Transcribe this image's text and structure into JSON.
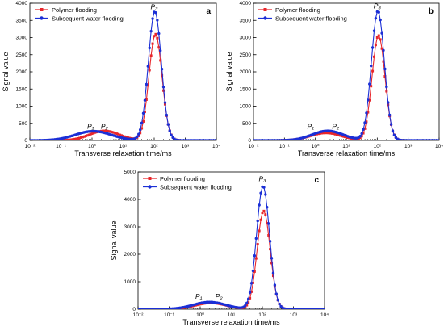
{
  "chart_data": [
    {
      "type": "line",
      "panel_label": "a",
      "xlabel": "Transverse relaxation time/ms",
      "ylabel": "Signal value",
      "xscale": "log",
      "xlim": [
        0.01,
        10000
      ],
      "ylim": [
        0,
        4000
      ],
      "x_ticks": [
        "10⁻²",
        "10⁻¹",
        "10⁰",
        "10¹",
        "10²",
        "10³",
        "10⁴"
      ],
      "y_ticks": [
        "0",
        "500",
        "1000",
        "1500",
        "2000",
        "2500",
        "3000",
        "3500",
        "4000"
      ],
      "legend_position": "top-left",
      "annotations": [
        {
          "text": "P₁",
          "x": 0.9,
          "y": 300
        },
        {
          "text": "P₂",
          "x": 2.5,
          "y": 300
        },
        {
          "text": "P₃",
          "x": 100,
          "y": 3780
        }
      ],
      "series": [
        {
          "name": "Polymer flooding",
          "color": "#e8262b",
          "marker": "square",
          "peaks": [
            {
              "center": 2.5,
              "height": 280,
              "width": 0.48
            },
            {
              "center": 110,
              "height": 3100,
              "width": 0.21
            }
          ]
        },
        {
          "name": "Subsequent water flooding",
          "color": "#1b2fd6",
          "marker": "circle",
          "peaks": [
            {
              "center": 1.1,
              "height": 270,
              "width": 0.58
            },
            {
              "center": 105,
              "height": 3760,
              "width": 0.21
            }
          ]
        }
      ]
    },
    {
      "type": "line",
      "panel_label": "b",
      "xlabel": "Transverse relaxation time/ms",
      "ylabel": "Signal value",
      "xscale": "log",
      "xlim": [
        0.01,
        10000
      ],
      "ylim": [
        0,
        4000
      ],
      "x_ticks": [
        "10⁻²",
        "10⁻¹",
        "10⁰",
        "10¹",
        "10²",
        "10³",
        "10⁴"
      ],
      "y_ticks": [
        "0",
        "500",
        "1000",
        "1500",
        "2000",
        "2500",
        "3000",
        "3500",
        "4000"
      ],
      "legend_position": "top-left",
      "annotations": [
        {
          "text": "P₁",
          "x": 0.7,
          "y": 300
        },
        {
          "text": "P₂",
          "x": 4.5,
          "y": 300
        },
        {
          "text": "P₃",
          "x": 100,
          "y": 3800
        }
      ],
      "series": [
        {
          "name": "Polymer flooding",
          "color": "#e8262b",
          "marker": "square",
          "peaks": [
            {
              "center": 2.2,
              "height": 220,
              "width": 0.5
            },
            {
              "center": 110,
              "height": 3060,
              "width": 0.21
            }
          ]
        },
        {
          "name": "Subsequent water flooding",
          "color": "#1b2fd6",
          "marker": "circle",
          "peaks": [
            {
              "center": 2.5,
              "height": 280,
              "width": 0.5
            },
            {
              "center": 105,
              "height": 3770,
              "width": 0.21
            }
          ]
        }
      ]
    },
    {
      "type": "line",
      "panel_label": "c",
      "xlabel": "Transverse relaxation time/ms",
      "ylabel": "Signal value",
      "xscale": "log",
      "xlim": [
        0.01,
        10000
      ],
      "ylim": [
        0,
        5000
      ],
      "x_ticks": [
        "10⁻²",
        "10⁻¹",
        "10⁰",
        "10¹",
        "10²",
        "10³",
        "10⁴"
      ],
      "y_ticks": [
        "0",
        "1000",
        "2000",
        "3000",
        "4000",
        "5000"
      ],
      "legend_position": "top-left",
      "annotations": [
        {
          "text": "P₁",
          "x": 0.9,
          "y": 330
        },
        {
          "text": "P₂",
          "x": 4.0,
          "y": 330
        },
        {
          "text": "P₃",
          "x": 100,
          "y": 4600
        }
      ],
      "series": [
        {
          "name": "Polymer flooding",
          "color": "#e8262b",
          "marker": "square",
          "peaks": [
            {
              "center": 2.2,
              "height": 230,
              "width": 0.5
            },
            {
              "center": 110,
              "height": 3580,
              "width": 0.21
            }
          ]
        },
        {
          "name": "Subsequent water flooding",
          "color": "#1b2fd6",
          "marker": "circle",
          "peaks": [
            {
              "center": 2.0,
              "height": 260,
              "width": 0.52
            },
            {
              "center": 105,
              "height": 4480,
              "width": 0.21
            }
          ]
        }
      ]
    }
  ]
}
